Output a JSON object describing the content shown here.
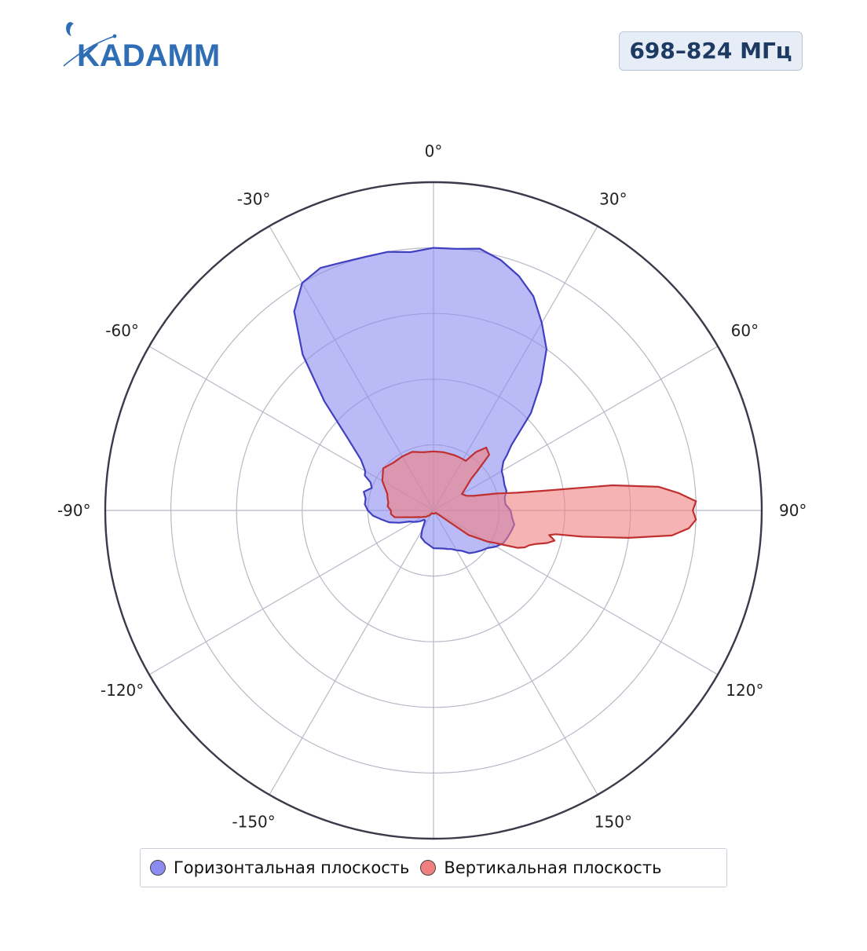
{
  "header": {
    "logo_text": "KADAMM",
    "band_label": "698–824 МГц"
  },
  "colors": {
    "horizontal_fill": "#8c8cf0",
    "horizontal_line": "#4040c0",
    "vertical_fill": "#f08080",
    "vertical_line": "#c03030",
    "grid": "#b8b8c8",
    "outer_ring": "#3a3a4a",
    "logo": "#2f6eb5"
  },
  "chart_data": {
    "type": "polar",
    "title": "",
    "angular_axis": {
      "direction": "clockwise",
      "zero": "top",
      "tick_angles": [
        0,
        30,
        60,
        90,
        120,
        150,
        -150,
        -120,
        -90,
        -60,
        -30
      ],
      "tick_labels": [
        "0°",
        "30°",
        "60°",
        "90°",
        "120°",
        "150°",
        "-150°",
        "-120°",
        "-90°",
        "-60°",
        "-30°"
      ]
    },
    "radial_axis": {
      "range": [
        0,
        1
      ],
      "rings": [
        0.2,
        0.4,
        0.6,
        0.8,
        1.0
      ],
      "tick_labels_visible": false
    },
    "legend_position": "bottom",
    "series": [
      {
        "name": "Горизонтальная плоскость",
        "color_key": "horizontal",
        "angles": [
          -180,
          -165,
          -155,
          -150,
          -145,
          -140,
          -135,
          -130,
          -125,
          -120,
          -115,
          -110,
          -105,
          -100,
          -95,
          -90,
          -85,
          -80,
          -75,
          -70,
          -66,
          -63,
          -60,
          -55,
          -50,
          -45,
          -40,
          -35,
          -30,
          -25,
          -20,
          -15,
          -10,
          -5,
          0,
          5,
          10,
          15,
          20,
          25,
          30,
          35,
          40,
          45,
          50,
          53,
          55,
          60,
          65,
          70,
          75,
          80,
          85,
          90,
          95,
          100,
          105,
          110,
          115,
          120,
          125,
          130,
          135,
          140,
          145,
          150,
          155,
          160,
          165,
          180
        ],
        "values": [
          0.115,
          0.1,
          0.09,
          0.07,
          0.05,
          0.04,
          0.04,
          0.05,
          0.06,
          0.07,
          0.08,
          0.11,
          0.14,
          0.16,
          0.185,
          0.2,
          0.21,
          0.21,
          0.22,
          0.2,
          0.21,
          0.235,
          0.24,
          0.27,
          0.34,
          0.47,
          0.62,
          0.74,
          0.8,
          0.815,
          0.805,
          0.8,
          0.8,
          0.79,
          0.8,
          0.8,
          0.81,
          0.79,
          0.76,
          0.72,
          0.66,
          0.6,
          0.51,
          0.42,
          0.31,
          0.28,
          0.26,
          0.24,
          0.235,
          0.23,
          0.23,
          0.22,
          0.22,
          0.235,
          0.24,
          0.25,
          0.245,
          0.24,
          0.235,
          0.22,
          0.2,
          0.19,
          0.18,
          0.17,
          0.15,
          0.14,
          0.13,
          0.125,
          0.12,
          0.115
        ]
      },
      {
        "name": "Вертикальная плоскость",
        "color_key": "vertical",
        "angles": [
          -180,
          -150,
          -140,
          -130,
          -120,
          -110,
          -100,
          -95,
          -90,
          -85,
          -80,
          -75,
          -70,
          -60,
          -50,
          -40,
          -30,
          -20,
          -10,
          0,
          10,
          20,
          25,
          30,
          33,
          36,
          40,
          45,
          48,
          50,
          55,
          60,
          66,
          70,
          75,
          78,
          80,
          82,
          84,
          86,
          88,
          90,
          92,
          94,
          96,
          98,
          100,
          101,
          102,
          103,
          104,
          106,
          108,
          110,
          112,
          114,
          116,
          118,
          120,
          125,
          135,
          145,
          155,
          165,
          180
        ],
        "values": [
          0.01,
          0.01,
          0.02,
          0.03,
          0.04,
          0.06,
          0.12,
          0.13,
          0.13,
          0.14,
          0.14,
          0.145,
          0.15,
          0.18,
          0.2,
          0.19,
          0.19,
          0.19,
          0.18,
          0.18,
          0.18,
          0.18,
          0.18,
          0.18,
          0.18,
          0.22,
          0.25,
          0.24,
          0.18,
          0.15,
          0.12,
          0.1,
          0.11,
          0.13,
          0.2,
          0.26,
          0.35,
          0.55,
          0.69,
          0.75,
          0.8,
          0.79,
          0.8,
          0.78,
          0.73,
          0.6,
          0.46,
          0.38,
          0.36,
          0.37,
          0.38,
          0.36,
          0.33,
          0.31,
          0.3,
          0.28,
          0.24,
          0.21,
          0.19,
          0.13,
          0.01,
          0.01,
          0.01,
          0.01,
          0.01
        ]
      }
    ]
  }
}
